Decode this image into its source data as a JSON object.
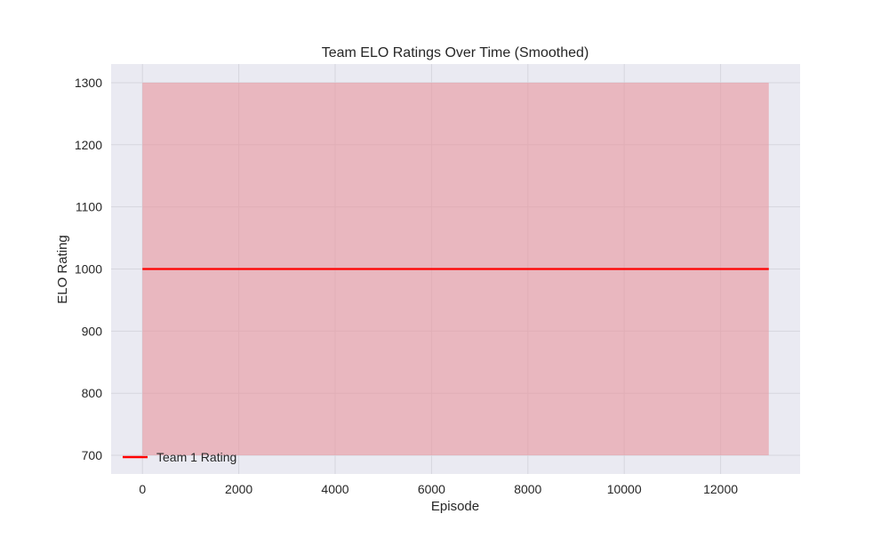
{
  "chart_data": {
    "type": "line",
    "title": "Team ELO Ratings Over Time (Smoothed)",
    "xlabel": "Episode",
    "ylabel": "ELO Rating",
    "xlim": [
      -650,
      13650
    ],
    "ylim": [
      670,
      1330
    ],
    "xticks": [
      0,
      2000,
      4000,
      6000,
      8000,
      10000,
      12000
    ],
    "yticks": [
      700,
      800,
      900,
      1000,
      1100,
      1200,
      1300
    ],
    "xtick_labels": [
      "0",
      "2000",
      "4000",
      "6000",
      "8000",
      "10000",
      "12000"
    ],
    "ytick_labels": [
      "700",
      "800",
      "900",
      "1000",
      "1100",
      "1200",
      "1300"
    ],
    "grid": true,
    "legend_position": "bottom-left",
    "series": [
      {
        "name": "Team 1 Rating",
        "color": "#ff0000",
        "x": [
          0,
          13000
        ],
        "y": [
          1000,
          1000
        ],
        "band": {
          "x": [
            0,
            13000
          ],
          "lower": [
            700,
            700
          ],
          "upper": [
            1300,
            1300
          ],
          "color": "#e8949c"
        }
      }
    ]
  },
  "colors": {
    "plot_background": "#eaeaf2",
    "grid": "#d6d6de"
  }
}
